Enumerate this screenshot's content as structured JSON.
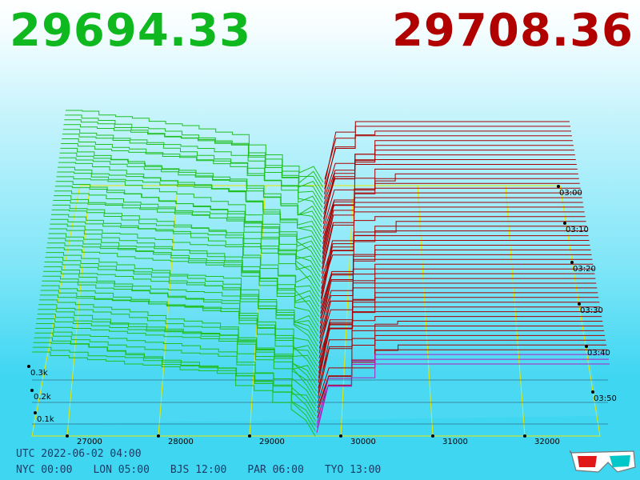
{
  "header": {
    "bid_price": "29694.33",
    "ask_price": "29708.36",
    "bid_color": "#10b820",
    "ask_color": "#b00000"
  },
  "chart_data": {
    "type": "3d-depth-chart",
    "price_ticks": [
      "27000",
      "28000",
      "29000",
      "30000",
      "31000",
      "32000"
    ],
    "volume_ticks": [
      "0.1k",
      "0.2k",
      "0.3k"
    ],
    "time_ticks": [
      "03:00",
      "03:10",
      "03:20",
      "03:30",
      "03:40",
      "03:50"
    ],
    "series": [
      {
        "name": "bids",
        "color": "#20c020"
      },
      {
        "name": "asks",
        "color": "#a80000"
      }
    ],
    "grid": true
  },
  "footer": {
    "utc": "UTC 2022-06-02 04:00",
    "timezones": [
      "NYC 00:00",
      "LON 05:00",
      "BJS 12:00",
      "PAR 06:00",
      "TYO 13:00"
    ]
  },
  "icons": {
    "glasses": "3d-glasses-icon"
  }
}
